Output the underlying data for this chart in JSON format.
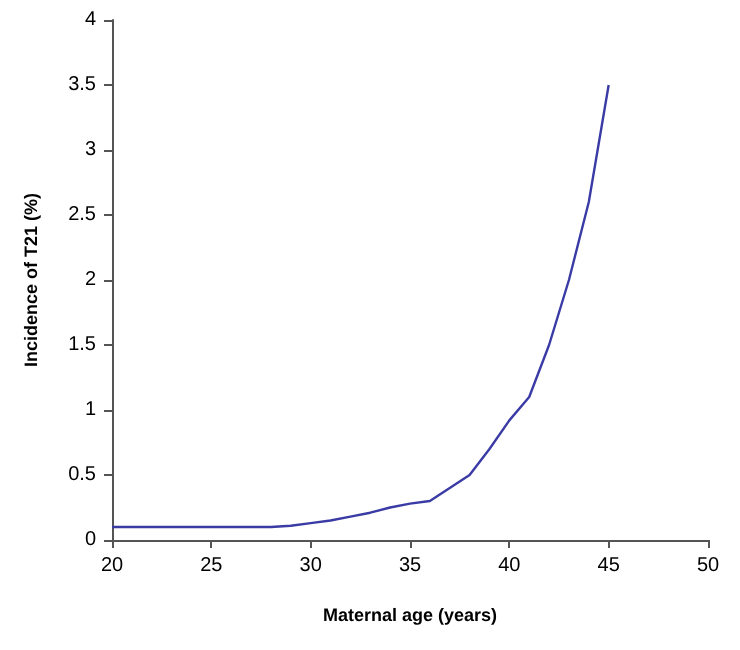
{
  "chart_data": {
    "type": "line",
    "xlabel": "Maternal age (years)",
    "ylabel": "Incidence of T21 (%)",
    "x": [
      20,
      21,
      22,
      23,
      24,
      25,
      26,
      27,
      28,
      29,
      30,
      31,
      32,
      33,
      34,
      35,
      36,
      37,
      38,
      39,
      40,
      41,
      42,
      43,
      44,
      45
    ],
    "series": [
      {
        "color": "#3b3ba6",
        "values": [
          0.1,
          0.1,
          0.1,
          0.1,
          0.1,
          0.1,
          0.1,
          0.1,
          0.1,
          0.11,
          0.13,
          0.15,
          0.18,
          0.21,
          0.25,
          0.28,
          0.3,
          0.4,
          0.5,
          0.7,
          0.92,
          1.1,
          1.5,
          2.0,
          2.6,
          3.5
        ]
      }
    ],
    "xlim": [
      20,
      50
    ],
    "xticks": [
      20,
      25,
      30,
      35,
      40,
      45,
      50
    ],
    "ylim": [
      0,
      4
    ],
    "yticks": [
      0,
      0.5,
      1,
      1.5,
      2,
      2.5,
      3,
      3.5,
      4
    ],
    "grid": false,
    "marker": "none",
    "line_style": "solid"
  }
}
